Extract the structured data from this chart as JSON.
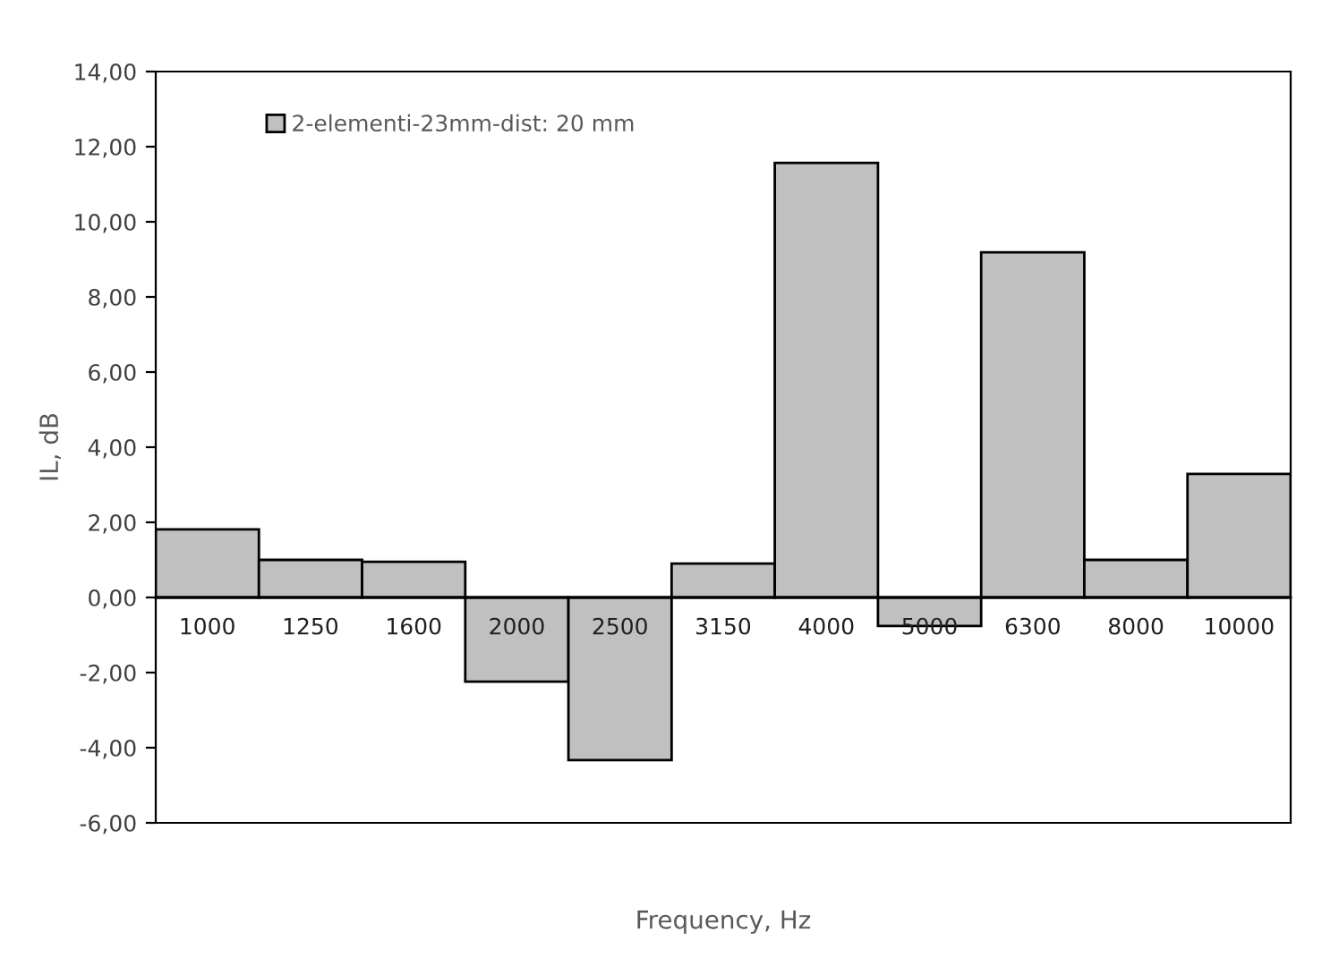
{
  "chart_data": {
    "type": "bar",
    "xlabel": "Frequency, Hz",
    "ylabel": "IL, dB",
    "categories": [
      "1000",
      "1250",
      "1600",
      "2000",
      "2500",
      "3150",
      "4000",
      "5000",
      "6300",
      "8000",
      "10000"
    ],
    "series": [
      {
        "name": "2-elementi-23mm-dist: 20 mm",
        "color": "#c0c0c0",
        "values": [
          1.81,
          1.0,
          0.95,
          -2.24,
          -4.33,
          0.9,
          11.57,
          -0.76,
          9.19,
          1.0,
          3.29
        ]
      }
    ],
    "ylim": [
      -6,
      14
    ],
    "yticks": [
      {
        "value": -6,
        "label": "-6,00"
      },
      {
        "value": -4,
        "label": "-4,00"
      },
      {
        "value": -2,
        "label": "-2,00"
      },
      {
        "value": 0,
        "label": "0,00"
      },
      {
        "value": 2,
        "label": "2,00"
      },
      {
        "value": 4,
        "label": "4,00"
      },
      {
        "value": 6,
        "label": "6,00"
      },
      {
        "value": 8,
        "label": "8,00"
      },
      {
        "value": 10,
        "label": "10,00"
      },
      {
        "value": 12,
        "label": "12,00"
      },
      {
        "value": 14,
        "label": "14,00"
      }
    ],
    "grid": false,
    "legend": "top left"
  }
}
